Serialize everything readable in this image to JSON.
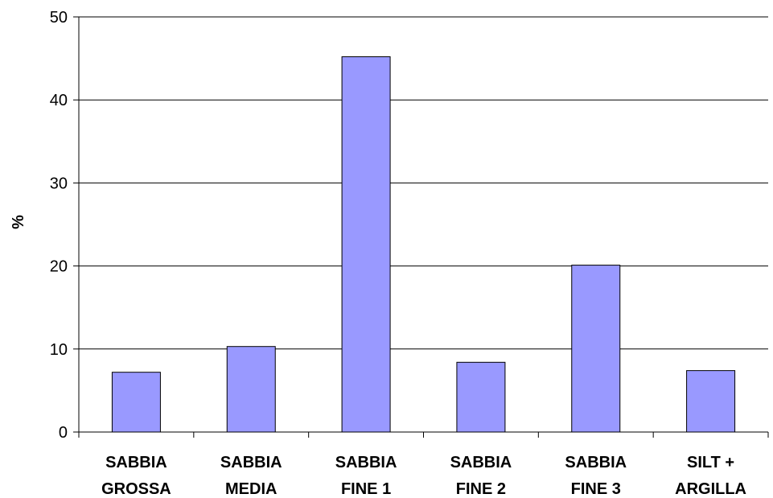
{
  "chart_data": {
    "type": "bar",
    "title": "",
    "xlabel": "",
    "ylabel": "%",
    "ylim": [
      0,
      50
    ],
    "yticks": [
      0,
      10,
      20,
      30,
      40,
      50
    ],
    "grid": true,
    "legend": "none",
    "categories": [
      [
        "SABBIA",
        "GROSSA"
      ],
      [
        "SABBIA",
        "MEDIA"
      ],
      [
        "SABBIA",
        "FINE 1"
      ],
      [
        "SABBIA",
        "FINE 2"
      ],
      [
        "SABBIA",
        "FINE 3"
      ],
      [
        "SILT +",
        "ARGILLA"
      ]
    ],
    "values": [
      7.2,
      10.3,
      45.2,
      8.4,
      20.1,
      7.4
    ],
    "colors": {
      "bar": "#9999ff",
      "bar_outline": "#000000",
      "grid": "#000000",
      "axis": "#000000"
    }
  }
}
